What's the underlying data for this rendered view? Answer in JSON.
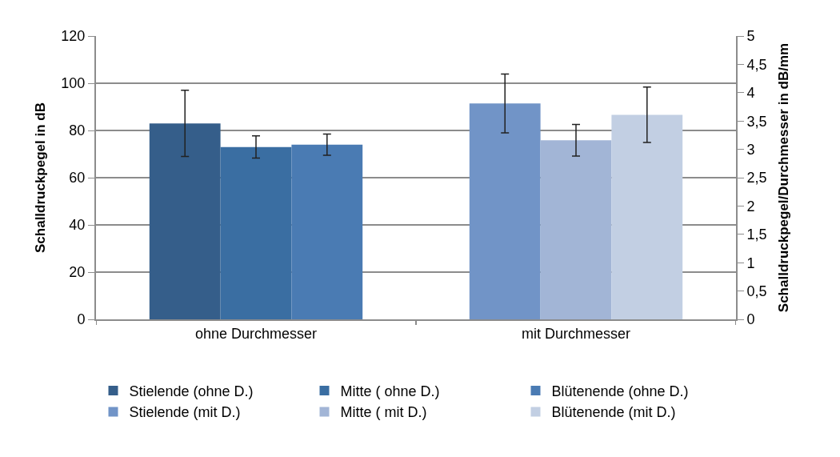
{
  "chart_data": {
    "type": "bar",
    "ylabel": "Schalldruckpegel in dB",
    "y2label": "Schalldruckpegel/Durchmesser in dB/mm",
    "categories": [
      "ohne Durchmesser",
      "mit Durchmesser"
    ],
    "series": [
      {
        "name": "Stielende (ohne D.)",
        "color": "#355e8a",
        "values": [
          83,
          null
        ],
        "errors": [
          14,
          null
        ]
      },
      {
        "name": "Mitte ( ohne D.)",
        "color": "#3a6ea2",
        "values": [
          73,
          null
        ],
        "errors": [
          4.7,
          null
        ]
      },
      {
        "name": "Blütenende (ohne D.)",
        "color": "#4a7bb3",
        "values": [
          74,
          null
        ],
        "errors": [
          4.5,
          null
        ]
      },
      {
        "name": "Stielende (mit D.)",
        "color": "#7194c7",
        "values": [
          null,
          3.81
        ],
        "errors": [
          null,
          0.52
        ],
        "axis": "y2"
      },
      {
        "name": "Mitte ( mit D.)",
        "color": "#a2b5d6",
        "values": [
          null,
          3.16
        ],
        "errors": [
          null,
          0.28
        ],
        "axis": "y2"
      },
      {
        "name": "Blütenende (mit D.)",
        "color": "#c2cfe3",
        "values": [
          null,
          3.61
        ],
        "errors": [
          null,
          0.49
        ],
        "axis": "y2"
      }
    ],
    "ylim": [
      0,
      120
    ],
    "yticks": [
      0,
      20,
      40,
      60,
      80,
      100,
      120
    ],
    "y2lim": [
      0,
      5
    ],
    "y2ticks": [
      {
        "value": 0,
        "label": "0"
      },
      {
        "value": 0.5,
        "label": "0,5"
      },
      {
        "value": 1,
        "label": "1"
      },
      {
        "value": 1.5,
        "label": "1,5"
      },
      {
        "value": 2,
        "label": "2"
      },
      {
        "value": 2.5,
        "label": "2,5"
      },
      {
        "value": 3,
        "label": "3"
      },
      {
        "value": 3.5,
        "label": "3,5"
      },
      {
        "value": 4,
        "label": "4"
      },
      {
        "value": 4.5,
        "label": "4,5"
      },
      {
        "value": 5,
        "label": "5"
      }
    ],
    "grid": "y",
    "legend": "bottom"
  }
}
